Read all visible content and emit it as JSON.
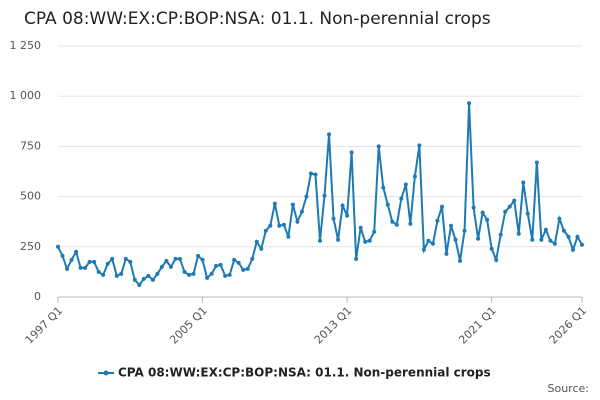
{
  "chart_data": {
    "type": "line",
    "title": "CPA 08:WW:EX:CP:BOP:NSA: 01.1. Non-perennial crops",
    "categories": [
      "1997 Q1",
      null,
      null,
      null,
      null,
      null,
      null,
      null,
      null,
      null,
      null,
      null,
      null,
      null,
      null,
      null,
      null,
      null,
      null,
      null,
      null,
      null,
      null,
      null,
      null,
      null,
      null,
      null,
      null,
      null,
      null,
      null,
      "2005 Q1",
      null,
      null,
      null,
      null,
      null,
      null,
      null,
      null,
      null,
      null,
      null,
      null,
      null,
      null,
      null,
      null,
      null,
      null,
      null,
      null,
      null,
      null,
      null,
      null,
      null,
      null,
      null,
      null,
      null,
      null,
      null,
      "2013 Q1",
      null,
      null,
      null,
      null,
      null,
      null,
      null,
      null,
      null,
      null,
      null,
      null,
      null,
      null,
      null,
      null,
      null,
      null,
      null,
      null,
      null,
      null,
      null,
      null,
      null,
      null,
      null,
      null,
      null,
      null,
      null,
      "2021 Q1",
      null,
      null,
      null,
      null,
      null,
      null,
      null,
      null,
      null,
      null,
      null,
      null,
      null,
      null,
      null,
      null,
      null,
      null,
      null,
      "2026 Q1"
    ],
    "series": [
      {
        "name": "CPA 08:WW:EX:CP:BOP:NSA: 01.1. Non-perennial crops",
        "color": "#1f7ab3",
        "values": [
          250,
          205,
          140,
          185,
          225,
          145,
          145,
          175,
          175,
          125,
          110,
          165,
          190,
          105,
          115,
          190,
          175,
          85,
          60,
          90,
          105,
          85,
          115,
          150,
          180,
          150,
          190,
          190,
          125,
          110,
          115,
          205,
          185,
          95,
          115,
          155,
          160,
          105,
          110,
          185,
          170,
          135,
          140,
          190,
          275,
          240,
          330,
          355,
          465,
          355,
          360,
          300,
          460,
          375,
          425,
          500,
          615,
          610,
          280,
          505,
          810,
          390,
          285,
          455,
          405,
          720,
          190,
          345,
          275,
          280,
          325,
          750,
          545,
          460,
          375,
          360,
          490,
          560,
          365,
          600,
          755,
          235,
          280,
          265,
          380,
          450,
          215,
          355,
          285,
          180,
          330,
          965,
          445,
          290,
          420,
          385,
          240,
          185,
          310,
          425,
          450,
          480,
          315,
          570,
          415,
          285,
          670,
          285,
          335,
          280,
          265,
          390,
          330,
          300,
          235,
          300,
          260
        ]
      }
    ],
    "ylim": [
      0,
      1250
    ],
    "yticks": [
      0,
      250,
      500,
      750,
      {
        "value": 1000,
        "label": "1 000"
      },
      {
        "value": 1250,
        "label": "1 250"
      }
    ],
    "grid": true,
    "source": "Source:"
  }
}
